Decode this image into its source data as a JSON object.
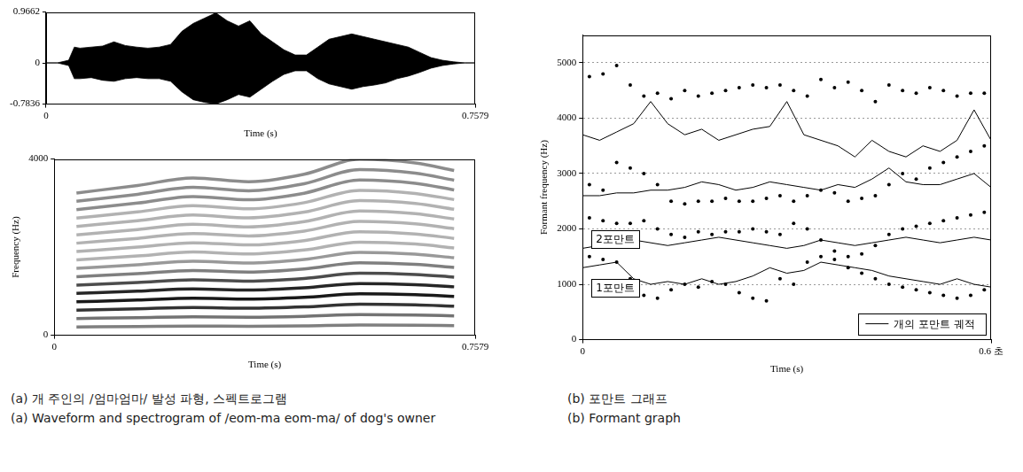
{
  "chart_data": [
    {
      "type": "area",
      "x_label": "Time (s)",
      "color": "#000000",
      "x": [
        0,
        0.02,
        0.04,
        0.05,
        0.06,
        0.08,
        0.1,
        0.12,
        0.14,
        0.16,
        0.18,
        0.2,
        0.22,
        0.24,
        0.26,
        0.28,
        0.3,
        0.32,
        0.34,
        0.36,
        0.38,
        0.4,
        0.42,
        0.44,
        0.46,
        0.48,
        0.5,
        0.52,
        0.54,
        0.56,
        0.58,
        0.6,
        0.62,
        0.64,
        0.66,
        0.68,
        0.7,
        0.72,
        0.74,
        0.7579
      ],
      "upper": [
        0,
        0,
        0.05,
        0.3,
        0.28,
        0.3,
        0.32,
        0.4,
        0.33,
        0.3,
        0.28,
        0.3,
        0.35,
        0.6,
        0.75,
        0.85,
        0.95,
        0.8,
        0.7,
        0.8,
        0.55,
        0.4,
        0.25,
        0.15,
        0.15,
        0.3,
        0.45,
        0.5,
        0.55,
        0.5,
        0.45,
        0.4,
        0.35,
        0.3,
        0.2,
        0.1,
        0.05,
        0.02,
        0,
        0
      ],
      "lower": [
        0,
        0,
        -0.05,
        -0.3,
        -0.3,
        -0.28,
        -0.33,
        -0.35,
        -0.3,
        -0.28,
        -0.3,
        -0.3,
        -0.35,
        -0.55,
        -0.7,
        -0.75,
        -0.78,
        -0.7,
        -0.6,
        -0.65,
        -0.5,
        -0.35,
        -0.22,
        -0.15,
        -0.15,
        -0.3,
        -0.4,
        -0.45,
        -0.5,
        -0.45,
        -0.42,
        -0.38,
        -0.3,
        -0.25,
        -0.18,
        -0.1,
        -0.05,
        -0.02,
        0,
        0
      ],
      "xlim": [
        0,
        0.7579
      ],
      "xticks": [
        0,
        0.7579
      ],
      "ylim": [
        -0.7836,
        0.9662
      ],
      "yticks": [
        -0.7836,
        0,
        0.9662
      ],
      "grid": false
    },
    {
      "type": "spectrogram",
      "x_label": "Time (s)",
      "y_label": "Frequency (Hz)",
      "color": "#000000",
      "x": [
        0.04,
        0.15,
        0.25,
        0.35,
        0.45,
        0.55,
        0.65,
        0.72
      ],
      "harmonics": [
        {
          "intensity": 0.5,
          "frequencies": [
            190,
            200,
            210,
            205,
            215,
            235,
            230,
            220
          ]
        },
        {
          "intensity": 0.55,
          "frequencies": [
            380,
            400,
            420,
            410,
            430,
            470,
            460,
            440
          ]
        },
        {
          "intensity": 0.8,
          "frequencies": [
            570,
            600,
            630,
            615,
            645,
            705,
            690,
            660
          ]
        },
        {
          "intensity": 0.9,
          "frequencies": [
            760,
            800,
            840,
            820,
            860,
            940,
            920,
            880
          ]
        },
        {
          "intensity": 0.85,
          "frequencies": [
            950,
            1000,
            1050,
            1025,
            1075,
            1175,
            1150,
            1100
          ]
        },
        {
          "intensity": 0.7,
          "frequencies": [
            1140,
            1200,
            1260,
            1230,
            1290,
            1410,
            1380,
            1320
          ]
        },
        {
          "intensity": 0.5,
          "frequencies": [
            1330,
            1400,
            1470,
            1435,
            1505,
            1645,
            1610,
            1540
          ]
        },
        {
          "intensity": 0.4,
          "frequencies": [
            1520,
            1600,
            1680,
            1640,
            1720,
            1880,
            1840,
            1760
          ]
        },
        {
          "intensity": 0.3,
          "frequencies": [
            1710,
            1800,
            1890,
            1845,
            1935,
            2115,
            2070,
            1980
          ]
        },
        {
          "intensity": 0.3,
          "frequencies": [
            1900,
            2000,
            2100,
            2050,
            2150,
            2350,
            2300,
            2200
          ]
        },
        {
          "intensity": 0.3,
          "frequencies": [
            2090,
            2200,
            2310,
            2255,
            2365,
            2585,
            2530,
            2420
          ]
        },
        {
          "intensity": 0.3,
          "frequencies": [
            2280,
            2400,
            2520,
            2460,
            2580,
            2820,
            2760,
            2640
          ]
        },
        {
          "intensity": 0.3,
          "frequencies": [
            2470,
            2600,
            2730,
            2665,
            2795,
            3055,
            2990,
            2860
          ]
        },
        {
          "intensity": 0.3,
          "frequencies": [
            2660,
            2800,
            2940,
            2870,
            3010,
            3290,
            3220,
            3080
          ]
        },
        {
          "intensity": 0.45,
          "frequencies": [
            2850,
            3000,
            3150,
            3075,
            3225,
            3525,
            3450,
            3300
          ]
        },
        {
          "intensity": 0.45,
          "frequencies": [
            3040,
            3200,
            3360,
            3280,
            3440,
            3760,
            3680,
            3520
          ]
        },
        {
          "intensity": 0.45,
          "frequencies": [
            3230,
            3400,
            3570,
            3485,
            3655,
            3995,
            3910,
            3740
          ]
        }
      ],
      "xlim": [
        0,
        0.7579
      ],
      "xticks": [
        0,
        0.7579
      ],
      "ylim": [
        0,
        4000
      ],
      "yticks": [
        0,
        4000
      ],
      "grid": false
    },
    {
      "type": "scatter",
      "x_label": "Time (s)",
      "y_label": "Formant frequency (Hz)",
      "annotations": [
        "2포만트",
        "1포만트"
      ],
      "legend": "lower right",
      "grid": "y",
      "xlim": [
        0,
        0.6
      ],
      "xticks": [
        0,
        {
          "value": 0.6,
          "label": "0.6 초"
        }
      ],
      "ylim": [
        0,
        5500
      ],
      "yticks": [
        0,
        1000,
        2000,
        3000,
        4000,
        5000
      ],
      "series": [
        {
          "type": "scatter",
          "marker": "circle",
          "color": "#000000",
          "x": [
            0.01,
            0.03,
            0.05,
            0.07,
            0.09,
            0.11,
            0.13,
            0.15,
            0.17,
            0.19,
            0.21,
            0.23,
            0.25,
            0.27,
            0.29,
            0.31,
            0.33,
            0.35,
            0.37,
            0.39,
            0.41,
            0.43,
            0.45,
            0.47,
            0.49,
            0.51,
            0.53,
            0.55,
            0.57,
            0.59
          ],
          "values": [
            1500,
            1450,
            1400,
            1100,
            800,
            750,
            900,
            1000,
            950,
            1050,
            1000,
            850,
            750,
            700,
            1100,
            1000,
            1400,
            1500,
            1450,
            1300,
            1200,
            1100,
            1000,
            950,
            900,
            850,
            800,
            750,
            800,
            900
          ]
        },
        {
          "type": "scatter",
          "marker": "circle",
          "color": "#000000",
          "x": [
            0.01,
            0.03,
            0.05,
            0.07,
            0.09,
            0.11,
            0.13,
            0.15,
            0.17,
            0.19,
            0.21,
            0.23,
            0.25,
            0.27,
            0.29,
            0.31,
            0.33,
            0.35,
            0.37,
            0.39,
            0.41,
            0.43,
            0.45,
            0.47,
            0.49,
            0.51,
            0.53,
            0.55,
            0.57,
            0.59
          ],
          "values": [
            2200,
            2150,
            2100,
            2100,
            2150,
            2000,
            1900,
            1850,
            1950,
            1900,
            1950,
            1950,
            2000,
            1950,
            1900,
            2100,
            2000,
            1800,
            1600,
            1500,
            1550,
            1700,
            1900,
            2000,
            2050,
            2100,
            2150,
            2200,
            2250,
            2300
          ]
        },
        {
          "type": "scatter",
          "marker": "circle",
          "color": "#000000",
          "x": [
            0.01,
            0.03,
            0.05,
            0.07,
            0.09,
            0.11,
            0.13,
            0.15,
            0.17,
            0.19,
            0.21,
            0.23,
            0.25,
            0.27,
            0.29,
            0.31,
            0.33,
            0.35,
            0.37,
            0.39,
            0.41,
            0.43,
            0.45,
            0.47,
            0.49,
            0.51,
            0.53,
            0.55,
            0.57,
            0.59
          ],
          "values": [
            2800,
            2700,
            3200,
            3100,
            3000,
            2800,
            2500,
            2450,
            2500,
            2500,
            2550,
            2500,
            2500,
            2550,
            2600,
            2500,
            2600,
            2700,
            2650,
            2500,
            2550,
            2600,
            2800,
            3000,
            2900,
            3100,
            3200,
            3300,
            3400,
            3500
          ]
        },
        {
          "type": "scatter",
          "marker": "circle",
          "color": "#000000",
          "x": [
            0.01,
            0.03,
            0.05,
            0.07,
            0.09,
            0.11,
            0.13,
            0.15,
            0.17,
            0.19,
            0.21,
            0.23,
            0.25,
            0.27,
            0.29,
            0.31,
            0.33,
            0.35,
            0.37,
            0.39,
            0.41,
            0.43,
            0.45,
            0.47,
            0.49,
            0.51,
            0.53,
            0.55,
            0.57,
            0.59
          ],
          "values": [
            4750,
            4800,
            4950,
            4600,
            4400,
            4450,
            4350,
            4500,
            4400,
            4450,
            4500,
            4550,
            4600,
            4550,
            4600,
            4500,
            4400,
            4700,
            4550,
            4650,
            4500,
            4300,
            4600,
            4500,
            4450,
            4550,
            4500,
            4400,
            4450,
            4450
          ]
        },
        {
          "type": "line",
          "name": "개의 포만트 궤적",
          "line_style": "solid",
          "color": "#000000",
          "x": [
            0,
            0.025,
            0.05,
            0.075,
            0.1,
            0.125,
            0.15,
            0.175,
            0.2,
            0.225,
            0.25,
            0.275,
            0.3,
            0.325,
            0.35,
            0.375,
            0.4,
            0.425,
            0.45,
            0.475,
            0.5,
            0.525,
            0.55,
            0.575,
            0.6
          ],
          "values": [
            1300,
            1350,
            1400,
            1100,
            1000,
            1050,
            1000,
            1100,
            1000,
            1050,
            1150,
            1300,
            1200,
            1250,
            1400,
            1350,
            1300,
            1250,
            1150,
            1100,
            1050,
            1000,
            1100,
            1000,
            950
          ]
        },
        {
          "type": "line",
          "line_style": "solid",
          "color": "#000000",
          "x": [
            0,
            0.025,
            0.05,
            0.075,
            0.1,
            0.125,
            0.15,
            0.175,
            0.2,
            0.225,
            0.25,
            0.275,
            0.3,
            0.325,
            0.35,
            0.375,
            0.4,
            0.425,
            0.45,
            0.475,
            0.5,
            0.525,
            0.55,
            0.575,
            0.6
          ],
          "values": [
            1650,
            1700,
            1750,
            1800,
            1750,
            1700,
            1750,
            1800,
            1850,
            1800,
            1750,
            1700,
            1650,
            1700,
            1800,
            1750,
            1700,
            1750,
            1800,
            1850,
            1800,
            1750,
            1800,
            1850,
            1800
          ]
        },
        {
          "type": "line",
          "line_style": "solid",
          "color": "#000000",
          "x": [
            0,
            0.025,
            0.05,
            0.075,
            0.1,
            0.125,
            0.15,
            0.175,
            0.2,
            0.225,
            0.25,
            0.275,
            0.3,
            0.325,
            0.35,
            0.375,
            0.4,
            0.425,
            0.45,
            0.475,
            0.5,
            0.525,
            0.55,
            0.575,
            0.6
          ],
          "values": [
            2600,
            2600,
            2650,
            2650,
            2700,
            2700,
            2750,
            2850,
            2800,
            2700,
            2750,
            2850,
            2800,
            2750,
            2700,
            2800,
            2750,
            2900,
            3100,
            2850,
            2800,
            2800,
            2900,
            3000,
            2750
          ]
        },
        {
          "type": "line",
          "line_style": "solid",
          "color": "#000000",
          "x": [
            0,
            0.025,
            0.05,
            0.075,
            0.1,
            0.125,
            0.15,
            0.175,
            0.2,
            0.225,
            0.25,
            0.275,
            0.3,
            0.325,
            0.35,
            0.375,
            0.4,
            0.425,
            0.45,
            0.475,
            0.5,
            0.525,
            0.55,
            0.575,
            0.6
          ],
          "values": [
            3700,
            3600,
            3750,
            3900,
            4300,
            3900,
            3700,
            3800,
            3600,
            3700,
            3800,
            3850,
            4300,
            3700,
            3600,
            3500,
            3300,
            3600,
            3400,
            3300,
            3500,
            3400,
            3600,
            4150,
            3600
          ]
        }
      ]
    }
  ],
  "captions": {
    "a": [
      "(a) 개 주인의 /엄마엄마/ 발성 파형, 스펙트로그램",
      "(a) Waveform and spectrogram of /eom-ma eom-ma/ of dog's owner"
    ],
    "b": [
      "(b) 포만트 그래프",
      "(b) Formant graph"
    ]
  }
}
